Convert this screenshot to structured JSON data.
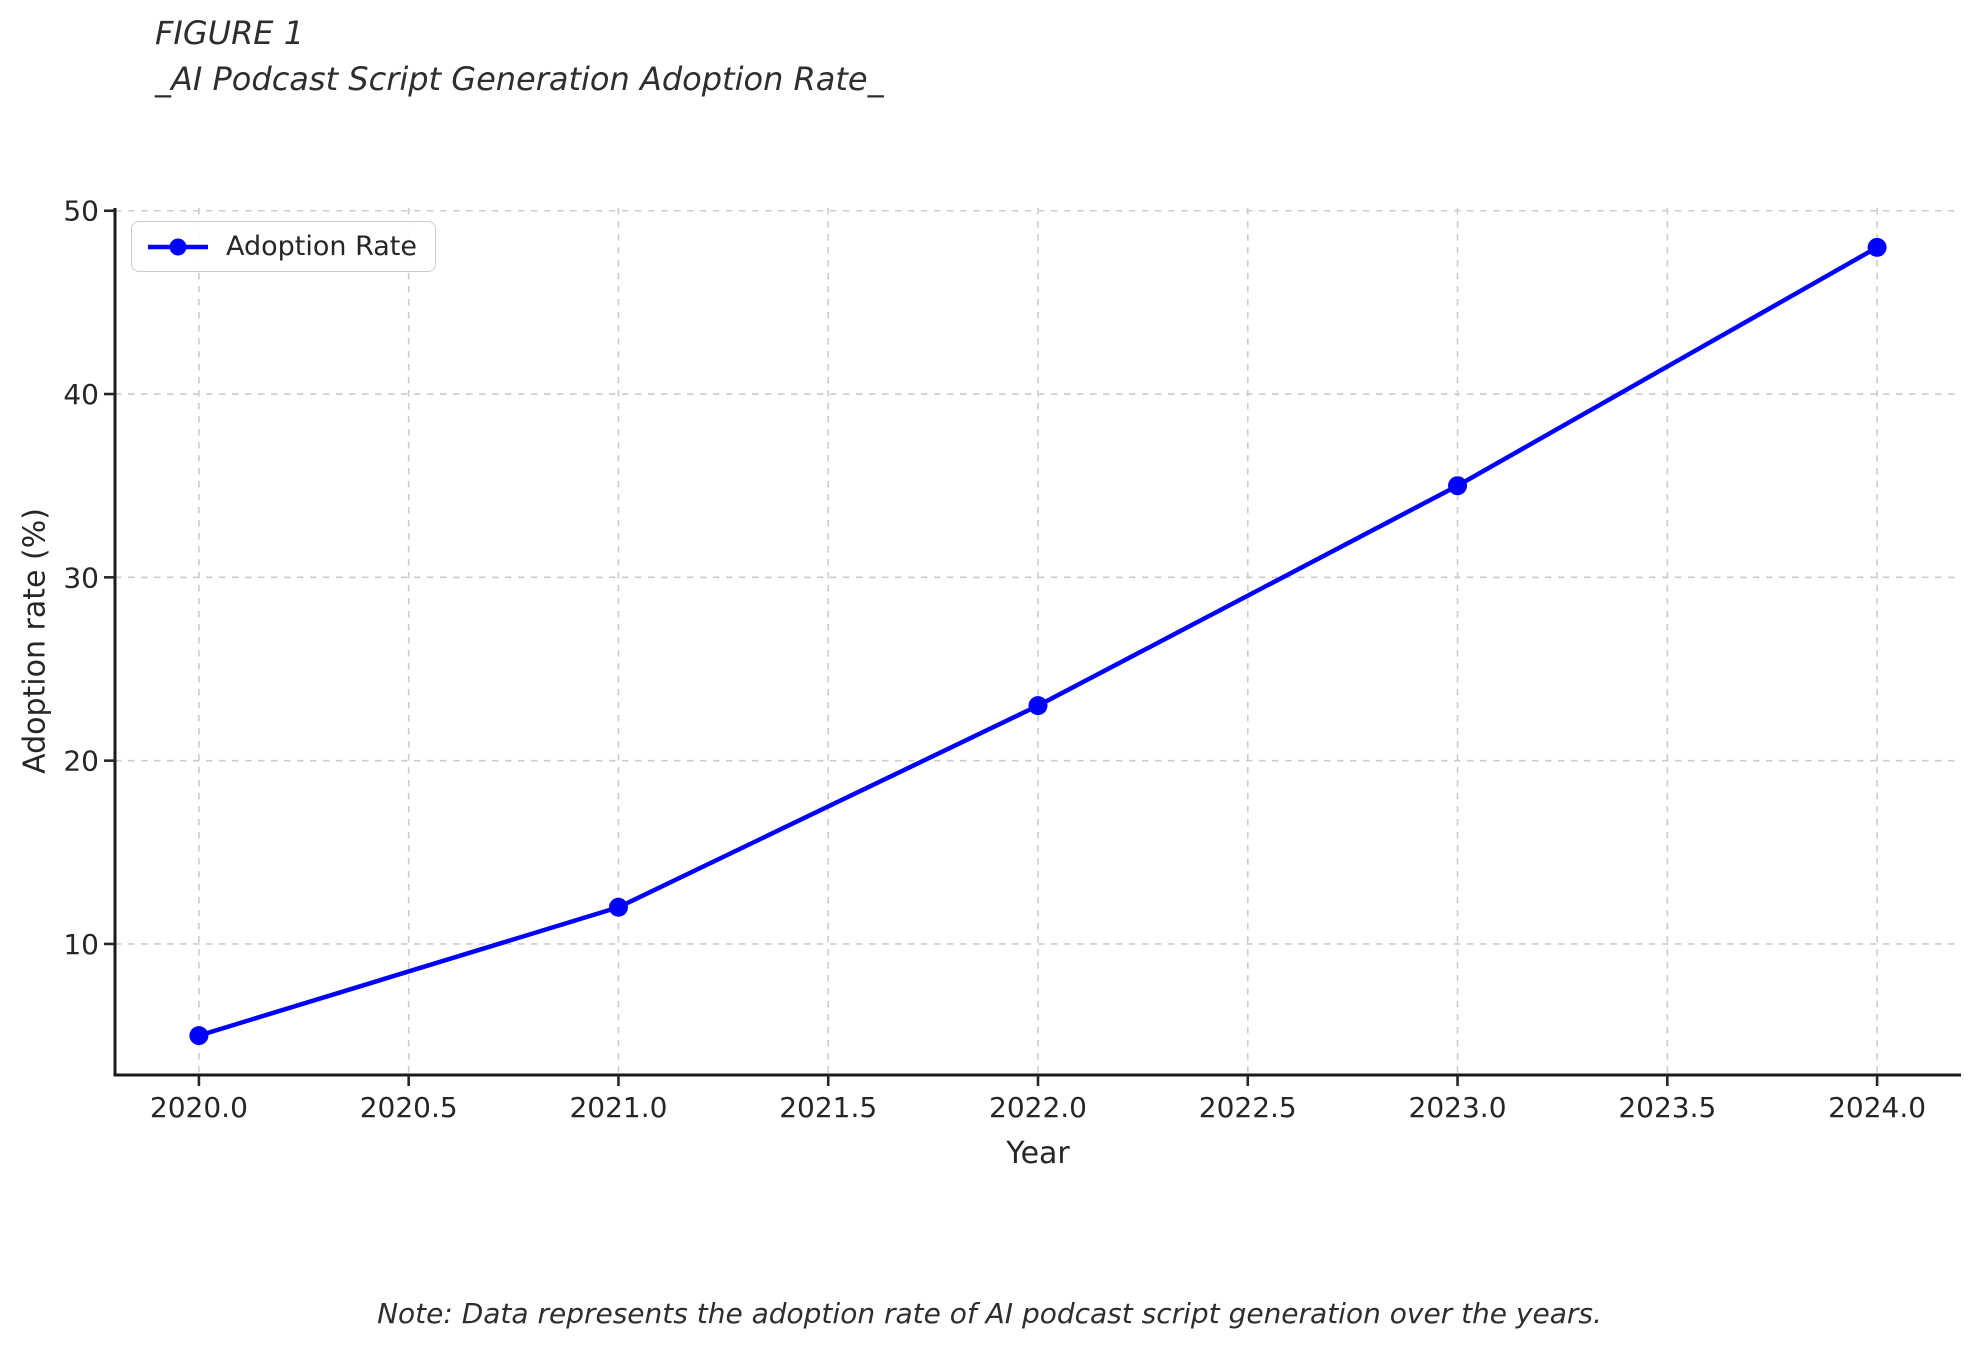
{
  "figure": {
    "title_line1": "FIGURE 1",
    "title_line2": "_AI Podcast Script Generation Adoption Rate_",
    "note": "Note: Data represents the adoption rate of AI podcast script generation over the years."
  },
  "chart_data": {
    "type": "line",
    "title": "FIGURE 1 _AI Podcast Script Generation Adoption Rate_",
    "xlabel": "Year",
    "ylabel": "Adoption rate (%)",
    "x": [
      2020,
      2021,
      2022,
      2023,
      2024
    ],
    "series": [
      {
        "name": "Adoption Rate",
        "values": [
          5,
          12,
          23,
          35,
          48
        ],
        "color": "#0000ff",
        "marker": "circle"
      }
    ],
    "xlim": [
      2019.8,
      2024.2
    ],
    "ylim": [
      2.85,
      50.15
    ],
    "xticks": [
      2020.0,
      2020.5,
      2021.0,
      2021.5,
      2022.0,
      2022.5,
      2023.0,
      2023.5,
      2024.0
    ],
    "xtick_labels": [
      "2020.0",
      "2020.5",
      "2021.0",
      "2021.5",
      "2022.0",
      "2022.5",
      "2023.0",
      "2023.5",
      "2024.0"
    ],
    "yticks": [
      10,
      20,
      30,
      40,
      50
    ],
    "ytick_labels": [
      "10",
      "20",
      "30",
      "40",
      "50"
    ],
    "grid": true,
    "grid_style": "dashed",
    "legend_position": "upper left",
    "colors": {
      "line": "#0000ff",
      "grid": "#cccccc",
      "spine": "#1a1a1a",
      "tick": "#262626",
      "text": "#262626"
    }
  }
}
